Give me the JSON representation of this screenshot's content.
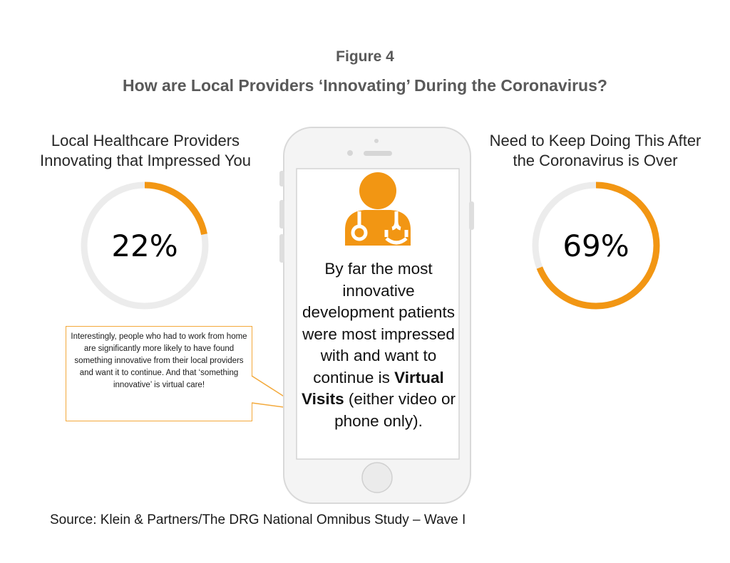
{
  "figure_label": "Figure 4",
  "figure_title": "How are Local Providers ‘Innovating’ During the Coronavirus?",
  "left_panel": {
    "label_line1": "Local Healthcare Providers",
    "label_line2": "Innovating that Impressed You",
    "value_text": "22%"
  },
  "right_panel": {
    "label_line1": "Need to Keep Doing This After",
    "label_line2": "the Coronavirus is Over",
    "value_text": "69%"
  },
  "callout": {
    "text": "Interestingly, people who had to work from home are significantly more likely to have found something innovative from their local providers and want it to continue.  And that ‘something innovative’ is virtual care!"
  },
  "phone_message": {
    "text_before": "By far the most innovative development patients were most impressed with and want to continue is ",
    "highlight": "Virtual Visits",
    "text_after": " (either video or phone only)."
  },
  "source": "Source: Klein & Partners/The  DRG National Omnibus Study – Wave I",
  "colors": {
    "accent": "#f29613",
    "track": "#ececec",
    "callout_border": "#f3a93b",
    "title": "#595959"
  },
  "icons": [
    "doctor-stethoscope-icon",
    "smartphone-frame"
  ],
  "chart_data": [
    {
      "type": "pie",
      "title": "Local Healthcare Providers Innovating that Impressed You",
      "values": [
        22
      ],
      "max": 100,
      "unit": "%"
    },
    {
      "type": "pie",
      "title": "Need to Keep Doing This After the Coronavirus is Over",
      "values": [
        69
      ],
      "max": 100,
      "unit": "%"
    }
  ]
}
